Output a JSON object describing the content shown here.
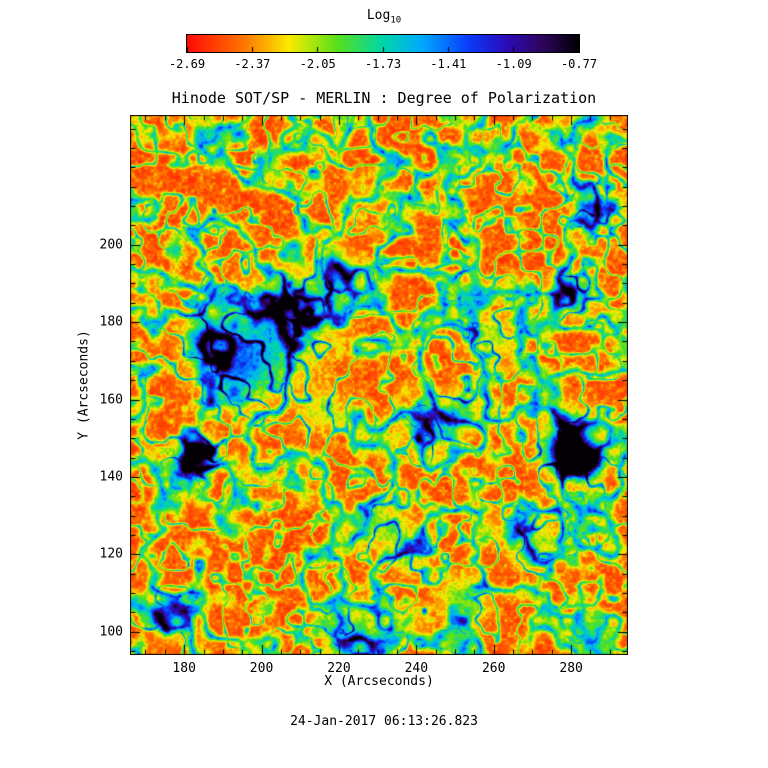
{
  "window": {
    "background": "#ffffff"
  },
  "colorbar_label": {
    "text": "Log",
    "sub": "10"
  },
  "footer": {
    "timestamp": "24-Jan-2017 06:13:26.823"
  },
  "chart_data": {
    "type": "heatmap",
    "title": "Hinode SOT/SP - MERLIN : Degree of Polarization",
    "xlabel": "X (Arcseconds)",
    "ylabel": "Y (Arcseconds)",
    "xlim": [
      166,
      294.7
    ],
    "ylim": [
      94,
      233.5
    ],
    "x_ticks": [
      180,
      200,
      220,
      240,
      260,
      280
    ],
    "y_ticks": [
      100,
      120,
      140,
      160,
      180,
      200
    ],
    "minor_tick_step": 5,
    "grid": false,
    "frame_color": "#000000",
    "colorbar": {
      "label": "Log10",
      "position": "top",
      "range": [
        -2.69,
        -0.77
      ],
      "ticks": [
        -2.69,
        -2.37,
        -2.05,
        -1.73,
        -1.41,
        -1.09,
        -0.77
      ],
      "tick_labels": [
        "-2.69",
        "-2.37",
        "-2.05",
        "-1.73",
        "-1.41",
        "-1.09",
        "-0.77"
      ]
    },
    "value_range_log10": [
      -2.69,
      -0.77
    ],
    "colormap_stops": [
      [
        0.0,
        [
          255,
          12,
          5
        ]
      ],
      [
        0.14,
        [
          255,
          115,
          0
        ]
      ],
      [
        0.26,
        [
          250,
          235,
          0
        ]
      ],
      [
        0.38,
        [
          90,
          225,
          25
        ]
      ],
      [
        0.5,
        [
          0,
          215,
          170
        ]
      ],
      [
        0.6,
        [
          0,
          170,
          255
        ]
      ],
      [
        0.72,
        [
          10,
          60,
          250
        ]
      ],
      [
        0.82,
        [
          45,
          10,
          180
        ]
      ],
      [
        0.91,
        [
          45,
          5,
          90
        ]
      ],
      [
        1.0,
        [
          2,
          0,
          5
        ]
      ]
    ],
    "noise_seed": 7,
    "features": {
      "description": "Quiet-Sun degree-of-polarization map: predominantly low values (red, log10 p ~ -2.7 to -2.3) with magnetic network lanes in green/cyan/blue (~ -1.9 to -1.1) and strong-polarization patches reaching ~ -0.8 (dark violet/black).",
      "network_cell_size_arcsec": 12,
      "strong_patches_arcsec": [
        {
          "x": 183,
          "y": 146,
          "r": 4.5,
          "amp": 1.45
        },
        {
          "x": 279,
          "y": 146,
          "r": 5.5,
          "amp": 1.15
        },
        {
          "x": 283.5,
          "y": 143,
          "r": 4,
          "amp": 0.95
        },
        {
          "x": 280,
          "y": 151,
          "r": 8,
          "amp": 0.5
        },
        {
          "x": 202,
          "y": 176,
          "r": 13,
          "amp": 0.55
        },
        {
          "x": 193,
          "y": 167,
          "r": 9,
          "amp": 0.55
        },
        {
          "x": 210,
          "y": 184,
          "r": 8,
          "amp": 0.5
        },
        {
          "x": 186,
          "y": 177,
          "r": 7,
          "amp": 0.5
        },
        {
          "x": 221,
          "y": 192,
          "r": 6,
          "amp": 0.5
        },
        {
          "x": 280,
          "y": 188,
          "r": 5,
          "amp": 0.7
        },
        {
          "x": 286,
          "y": 209,
          "r": 6,
          "amp": 0.55
        },
        {
          "x": 243,
          "y": 152,
          "r": 7,
          "amp": 0.4
        },
        {
          "x": 252,
          "y": 158,
          "r": 6,
          "amp": 0.4
        },
        {
          "x": 232,
          "y": 128,
          "r": 6,
          "amp": 0.4
        },
        {
          "x": 238,
          "y": 120,
          "r": 6,
          "amp": 0.35
        },
        {
          "x": 225,
          "y": 99,
          "r": 7,
          "amp": 0.5
        },
        {
          "x": 252,
          "y": 108,
          "r": 7,
          "amp": 0.45
        },
        {
          "x": 176,
          "y": 104,
          "r": 6,
          "amp": 0.45
        },
        {
          "x": 270,
          "y": 124,
          "r": 7,
          "amp": 0.4
        },
        {
          "x": 216,
          "y": 157,
          "r": 6,
          "amp": 0.35
        },
        {
          "x": 259,
          "y": 176,
          "r": 7,
          "amp": 0.4
        }
      ]
    }
  }
}
